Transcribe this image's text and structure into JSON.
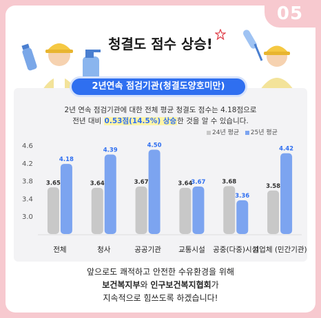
{
  "badge": "05",
  "title": "청결도 점수 상승!",
  "subtitle": "2년연속 점검기관(청결도양호미만)",
  "description": {
    "line1": "2년 연속 점검기관에 대한 전체 평균 청결도 점수는 4.18점으로",
    "line2_prefix": "전년 대비 ",
    "highlight": "0.53점(14.5%) 상승",
    "line2_suffix": "한 것을 알 수 있습니다."
  },
  "footer": {
    "line1": "앞으로도 쾌적하고 안전한 수유환경을 위해",
    "org1": "보건복지부",
    "connector": "와 ",
    "org2": "인구보건복지협회",
    "particle": "가",
    "line3": "지속적으로 힘쓰도록 하겠습니다!"
  },
  "colors": {
    "series24": "#c8c8c8",
    "series25": "#7ca4f0",
    "accent": "#2f6ff0"
  },
  "chart_data": {
    "type": "bar",
    "categories": [
      "전체",
      "청사",
      "공공기관",
      "교통시설",
      "공중(다중)시설",
      "기업체 (민간기관)"
    ],
    "series": [
      {
        "name": "24년 평균",
        "values": [
          3.65,
          3.64,
          3.67,
          3.64,
          3.68,
          3.58
        ]
      },
      {
        "name": "25년 평균",
        "values": [
          4.18,
          4.39,
          4.5,
          3.67,
          3.36,
          4.42
        ]
      }
    ],
    "yticks": [
      "4.6",
      "4.2",
      "3.8",
      "3.4",
      "3.0"
    ],
    "ylim": [
      2.6,
      4.6
    ],
    "legend": "top-right"
  }
}
